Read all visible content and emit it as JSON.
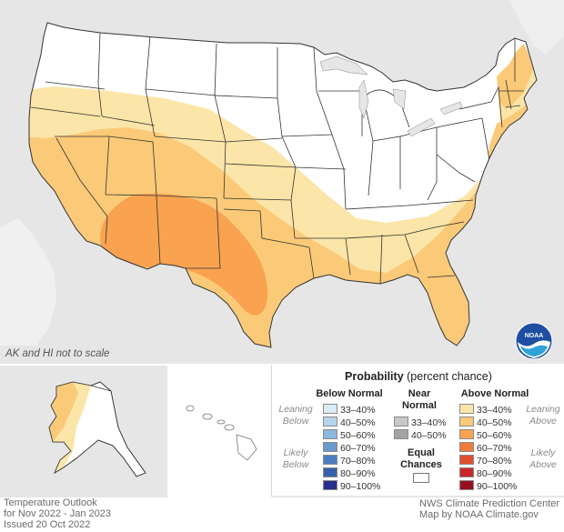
{
  "map": {
    "scale_note": "AK and HI not to scale",
    "colors": {
      "background": "#e6e6e6",
      "land_ec": "#ffffff",
      "above_33_40": "#fce5a8",
      "above_40_50": "#fbca78",
      "above_50_60": "#f9a350",
      "outline": "#333333"
    }
  },
  "legend": {
    "title": "Probability",
    "title_suffix": "(percent chance)",
    "below": {
      "heading": "Below Normal",
      "leaning": "Leaning Below",
      "likely": "Likely Below",
      "items": [
        {
          "label": "33–40%",
          "color": "#dcecf7"
        },
        {
          "label": "40–50%",
          "color": "#b7d4ec"
        },
        {
          "label": "50–60%",
          "color": "#8db8df"
        },
        {
          "label": "60–70%",
          "color": "#6a9bcf"
        },
        {
          "label": "70–80%",
          "color": "#4b7ec0"
        },
        {
          "label": "80–90%",
          "color": "#3760aa"
        },
        {
          "label": "90–100%",
          "color": "#272f8c"
        }
      ]
    },
    "near": {
      "heading_1": "Near",
      "heading_2": "Normal",
      "items": [
        {
          "label": "33–40%",
          "color": "#c8c8c8"
        },
        {
          "label": "40–50%",
          "color": "#a3a3a3"
        }
      ],
      "equal_1": "Equal",
      "equal_2": "Chances"
    },
    "above": {
      "heading": "Above Normal",
      "leaning": "Leaning Above",
      "likely": "Likely Above",
      "items": [
        {
          "label": "33–40%",
          "color": "#fce5a8"
        },
        {
          "label": "40–50%",
          "color": "#fbca78"
        },
        {
          "label": "50–60%",
          "color": "#f9a350"
        },
        {
          "label": "60–70%",
          "color": "#f07a3c"
        },
        {
          "label": "70–80%",
          "color": "#e04e2f"
        },
        {
          "label": "80–90%",
          "color": "#c8282a"
        },
        {
          "label": "90–100%",
          "color": "#970f1f"
        }
      ]
    }
  },
  "footer": {
    "line1": "Temperature Outlook",
    "line2": "for Nov 2022 - Jan 2023",
    "line3": "Issued 20 Oct 2022",
    "credit1": "NWS Climate Prediction Center",
    "credit2": "Map by NOAA Climate.gov"
  },
  "logo": {
    "text": "NOAA",
    "icon": "noaa-logo-icon"
  }
}
